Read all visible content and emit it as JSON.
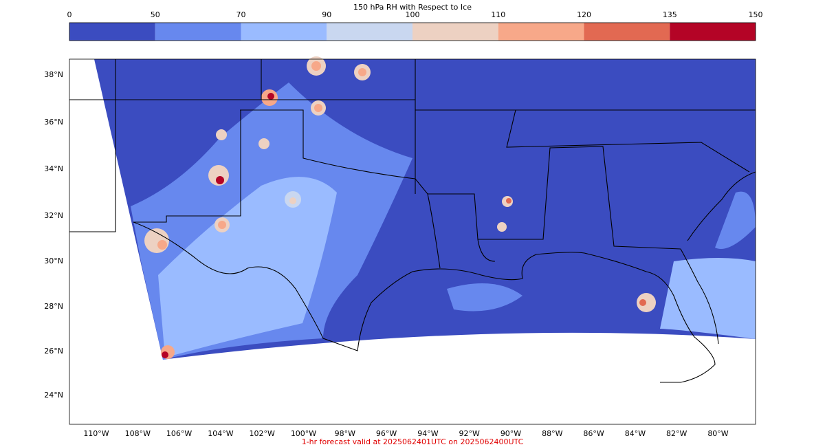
{
  "colorbar": {
    "title": "150 hPa RH with Respect to Ice",
    "ticks": [
      "0",
      "50",
      "70",
      "90",
      "100",
      "110",
      "120",
      "135",
      "150"
    ],
    "colors": [
      "#3b4cc0",
      "#6788ee",
      "#9abbff",
      "#c9d7f0",
      "#edd1c2",
      "#f7a889",
      "#e26952",
      "#b40426"
    ]
  },
  "map": {
    "lat_labels": [
      "38°N",
      "36°N",
      "34°N",
      "32°N",
      "30°N",
      "28°N",
      "26°N",
      "24°N"
    ],
    "lon_labels": [
      "110°W",
      "108°W",
      "106°W",
      "104°W",
      "102°W",
      "100°W",
      "98°W",
      "96°W",
      "94°W",
      "92°W",
      "90°W",
      "88°W",
      "86°W",
      "84°W",
      "82°W",
      "80°W"
    ]
  },
  "footer": "1-hr forecast valid at 2025062401UTC on 2025062400UTC"
}
